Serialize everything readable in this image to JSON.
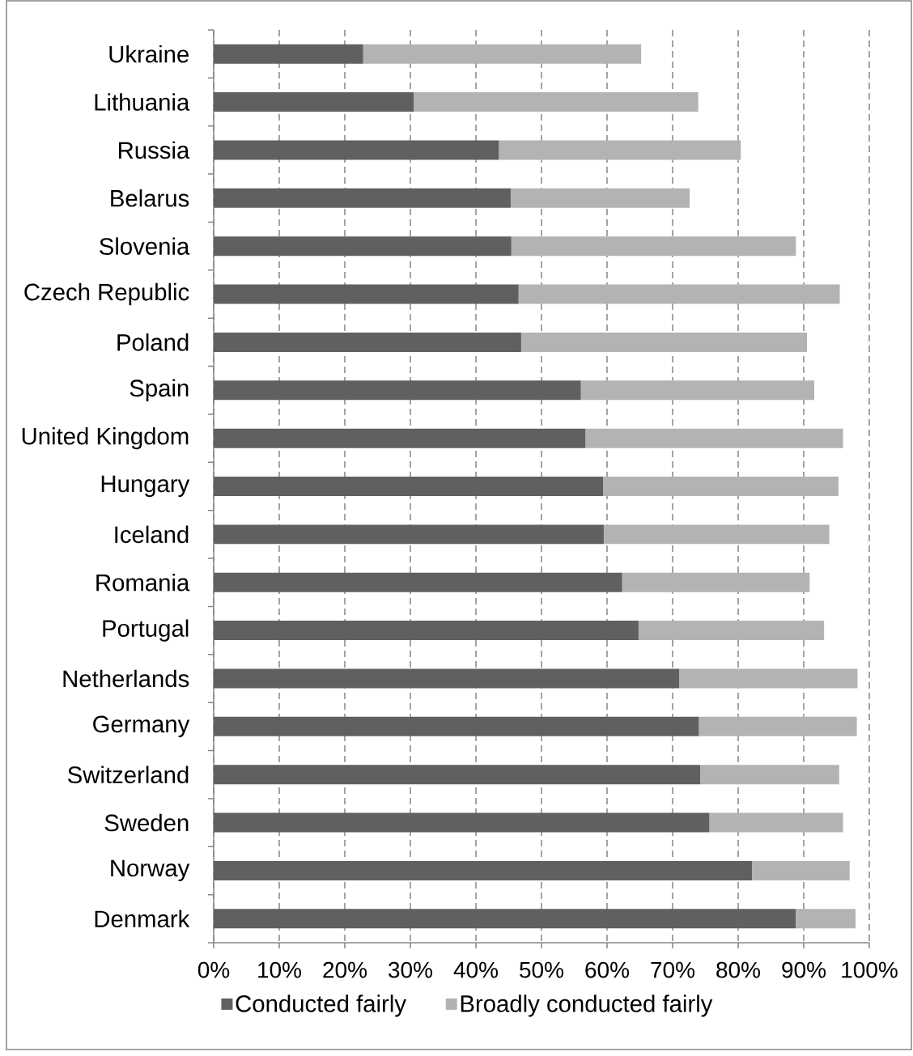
{
  "chart_data": {
    "type": "bar",
    "orientation": "horizontal",
    "stacked": true,
    "categories": [
      "Ukraine",
      "Lithuania",
      "Russia",
      "Belarus",
      "Slovenia",
      "Czech Republic",
      "Poland",
      "Spain",
      "United Kingdom",
      "Hungary",
      "Iceland",
      "Romania",
      "Portugal",
      "Netherlands",
      "Germany",
      "Switzerland",
      "Sweden",
      "Norway",
      "Denmark"
    ],
    "series": [
      {
        "name": "Conducted fairly",
        "color": "#606060",
        "values": [
          22.8,
          30.5,
          43.5,
          45.3,
          45.4,
          46.5,
          46.9,
          56.0,
          56.7,
          59.4,
          59.5,
          62.3,
          64.8,
          71.0,
          74.0,
          74.2,
          75.6,
          82.1,
          88.8
        ]
      },
      {
        "name": "Broadly conducted fairly",
        "color": "#b3b3b3",
        "values": [
          42.4,
          43.4,
          36.9,
          27.3,
          43.4,
          49.0,
          43.6,
          35.6,
          39.3,
          35.9,
          34.4,
          28.6,
          28.3,
          27.2,
          24.1,
          21.2,
          20.4,
          14.9,
          9.1
        ]
      }
    ],
    "xlim": [
      0,
      100
    ],
    "xticks": [
      {
        "value": 0,
        "label": "0%"
      },
      {
        "value": 10,
        "label": "10%"
      },
      {
        "value": 20,
        "label": "20%"
      },
      {
        "value": 30,
        "label": "30%"
      },
      {
        "value": 40,
        "label": "40%"
      },
      {
        "value": 50,
        "label": "50%"
      },
      {
        "value": 60,
        "label": "60%"
      },
      {
        "value": 70,
        "label": "70%"
      },
      {
        "value": 80,
        "label": "80%"
      },
      {
        "value": 90,
        "label": "90%"
      },
      {
        "value": 100,
        "label": "100%"
      }
    ],
    "grid": "x",
    "legend": "bottom"
  }
}
